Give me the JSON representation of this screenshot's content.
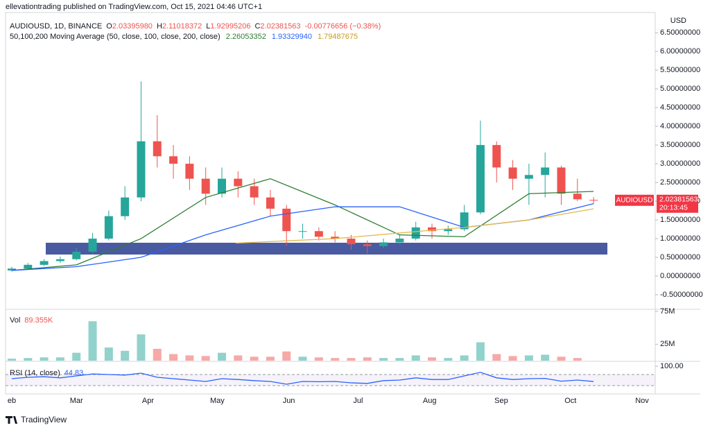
{
  "header": {
    "byline": "ellevationtrading published on TradingView.com, Oct 15, 2021 04:46 UTC+1",
    "axis_unit": "USD",
    "brand": "TradingView"
  },
  "legend": {
    "symbol": "AUDIOUSD, 1D, BINANCE",
    "ohlc": [
      {
        "key": "O",
        "value": "2.03395980"
      },
      {
        "key": "H",
        "value": "2.11018372"
      },
      {
        "key": "L",
        "value": "1.92995206"
      },
      {
        "key": "C",
        "value": "2.02381563"
      }
    ],
    "change": "-0.00776656 (−0.38%)",
    "ma_title": "50,100,200 Moving Average (50, close, 100, close, 200, close)"
  },
  "price_tag": {
    "symbol": "AUDIOUSD",
    "price": "2.02381563",
    "countdown": "20:13:45",
    "color": "#f23645"
  },
  "chart_data": [
    {
      "type": "candlestick",
      "xlim": [
        -2.7,
        278.7
      ],
      "xticks": [
        {
          "value": 0,
          "label": "eb"
        },
        {
          "value": 28,
          "label": "Mar"
        },
        {
          "value": 59,
          "label": "Apr"
        },
        {
          "value": 89,
          "label": "May"
        },
        {
          "value": 120,
          "label": "Jun"
        },
        {
          "value": 150,
          "label": "Jul"
        },
        {
          "value": 181,
          "label": "Aug"
        },
        {
          "value": 212,
          "label": "Sep"
        },
        {
          "value": 242,
          "label": "Oct"
        },
        {
          "value": 273,
          "label": "Nov"
        }
      ],
      "ylim": [
        -0.87,
        7.04
      ],
      "yticks": [
        {
          "value": 6.5,
          "label": "6.50000000"
        },
        {
          "value": 6,
          "label": "6.00000000"
        },
        {
          "value": 5.5,
          "label": "5.50000000"
        },
        {
          "value": 5,
          "label": "5.00000000"
        },
        {
          "value": 4.5,
          "label": "4.50000000"
        },
        {
          "value": 4,
          "label": "4.00000000"
        },
        {
          "value": 3.5,
          "label": "3.50000000"
        },
        {
          "value": 3,
          "label": "3.00000000"
        },
        {
          "value": 2.5,
          "label": "2.50000000"
        },
        {
          "value": 2,
          "label": "2.00000000"
        },
        {
          "value": 1.5,
          "label": "1.50000000"
        },
        {
          "value": 1,
          "label": "1.00000000"
        },
        {
          "value": 0.5,
          "label": "0.50000000"
        },
        {
          "value": 0,
          "label": "0.00000000"
        },
        {
          "value": -0.5,
          "label": "-0.50000000"
        }
      ],
      "grid": false,
      "up_color": "#26a69a",
      "down_color": "#ef5350",
      "x": [
        0,
        7,
        14,
        21,
        28,
        35,
        42,
        49,
        56,
        63,
        70,
        77,
        84,
        91,
        98,
        105,
        112,
        119,
        126,
        133,
        140,
        147,
        154,
        161,
        168,
        175,
        182,
        189,
        196,
        203,
        210,
        217,
        224,
        231,
        238,
        245,
        252
      ],
      "open": [
        0.15,
        0.2,
        0.3,
        0.4,
        0.45,
        0.65,
        1.0,
        1.6,
        2.1,
        3.6,
        3.2,
        3.0,
        2.6,
        2.2,
        2.6,
        2.4,
        2.1,
        1.8,
        1.2,
        1.2,
        1.05,
        1.0,
        0.85,
        0.8,
        0.9,
        1.0,
        1.3,
        1.2,
        1.25,
        1.7,
        3.5,
        2.9,
        2.6,
        2.7,
        2.9,
        2.2,
        2.0339598
      ],
      "high": [
        0.25,
        0.35,
        0.45,
        0.52,
        0.75,
        1.15,
        1.75,
        2.4,
        5.2,
        4.3,
        3.5,
        3.2,
        2.9,
        2.9,
        2.8,
        2.6,
        2.3,
        1.9,
        1.4,
        1.3,
        1.2,
        1.1,
        0.95,
        1.0,
        1.1,
        1.45,
        1.4,
        1.35,
        1.9,
        4.15,
        3.6,
        3.1,
        3.0,
        3.3,
        2.95,
        2.6,
        2.11018372
      ],
      "low": [
        0.12,
        0.18,
        0.27,
        0.35,
        0.42,
        0.6,
        0.95,
        1.5,
        2.0,
        2.9,
        2.6,
        2.3,
        1.9,
        2.1,
        2.1,
        1.9,
        1.6,
        0.8,
        1.0,
        0.95,
        0.9,
        0.7,
        0.6,
        0.75,
        0.85,
        0.95,
        1.0,
        1.1,
        1.2,
        1.65,
        2.5,
        2.3,
        1.9,
        2.1,
        1.9,
        2.0,
        1.92995206
      ],
      "close": [
        0.2,
        0.3,
        0.4,
        0.45,
        0.65,
        1.0,
        1.6,
        2.1,
        3.6,
        3.2,
        3.0,
        2.6,
        2.2,
        2.6,
        2.4,
        2.1,
        1.8,
        1.2,
        1.2,
        1.05,
        1.0,
        0.85,
        0.8,
        0.9,
        1.0,
        1.3,
        1.2,
        1.25,
        1.7,
        3.5,
        2.9,
        2.6,
        2.7,
        2.9,
        2.2,
        2.05,
        2.02381563
      ],
      "overlays": [
        {
          "color": "#2e7d32",
          "x": [
            0,
            28,
            56,
            84,
            112,
            140,
            168,
            196,
            224,
            252
          ],
          "values": [
            0.15,
            0.3,
            1.0,
            2.1,
            2.6,
            1.9,
            1.1,
            1.05,
            2.2,
            2.26053352
          ],
          "value_label": "2.26053352"
        },
        {
          "color": "#2962ff",
          "x": [
            0,
            28,
            56,
            84,
            112,
            140,
            168,
            196,
            224,
            252
          ],
          "values": [
            0.15,
            0.25,
            0.5,
            1.1,
            1.6,
            1.85,
            1.85,
            1.3,
            1.5,
            1.9332994
          ],
          "value_label": "1.93329940"
        },
        {
          "color": "#e8b84a",
          "x": [
            97,
            140,
            168,
            196,
            224,
            252
          ],
          "values": [
            0.88,
            1.0,
            1.15,
            1.3,
            1.5,
            1.79487675
          ],
          "value_label": "1.79487675"
        }
      ]
    },
    {
      "type": "bar",
      "name": "Vol",
      "value_label": "89.355K",
      "ylim": [
        0,
        77100000
      ],
      "yticks": [
        {
          "value": 25000000,
          "label": "25M"
        },
        {
          "value": 75000000,
          "label": "75M"
        }
      ],
      "x": [
        0,
        7,
        14,
        21,
        28,
        35,
        42,
        49,
        56,
        63,
        70,
        77,
        84,
        91,
        98,
        105,
        112,
        119,
        126,
        133,
        140,
        147,
        154,
        161,
        168,
        175,
        182,
        189,
        196,
        203,
        210,
        217,
        224,
        231,
        238,
        245,
        252
      ],
      "values": [
        3000000,
        4000000,
        5000000,
        5000000,
        12000000,
        60000000,
        20000000,
        15000000,
        40000000,
        18000000,
        10000000,
        8000000,
        7000000,
        12000000,
        8000000,
        6000000,
        6000000,
        14000000,
        6000000,
        5000000,
        4000000,
        4000000,
        5000000,
        4000000,
        4000000,
        8000000,
        5000000,
        4000000,
        8000000,
        28000000,
        10000000,
        7000000,
        8000000,
        9000000,
        6000000,
        4000000,
        89355
      ]
    },
    {
      "type": "line",
      "name": "RSI (14, close)",
      "value_label": "44.83",
      "color": "#2962ff",
      "ylim": [
        0,
        115
      ],
      "yticks": [
        {
          "value": 100,
          "label": "100.00"
        }
      ],
      "bands": [
        30,
        70
      ],
      "x": [
        0,
        7,
        14,
        21,
        28,
        35,
        42,
        49,
        56,
        63,
        70,
        77,
        84,
        91,
        98,
        105,
        112,
        119,
        126,
        133,
        140,
        147,
        154,
        161,
        168,
        175,
        182,
        189,
        196,
        203,
        210,
        217,
        224,
        231,
        238,
        245,
        252
      ],
      "values": [
        55,
        60,
        62,
        58,
        65,
        72,
        70,
        68,
        75,
        60,
        55,
        50,
        45,
        55,
        52,
        48,
        45,
        35,
        45,
        44,
        45,
        40,
        38,
        48,
        50,
        58,
        52,
        52,
        65,
        78,
        58,
        52,
        55,
        56,
        46,
        50,
        44.83
      ]
    }
  ]
}
